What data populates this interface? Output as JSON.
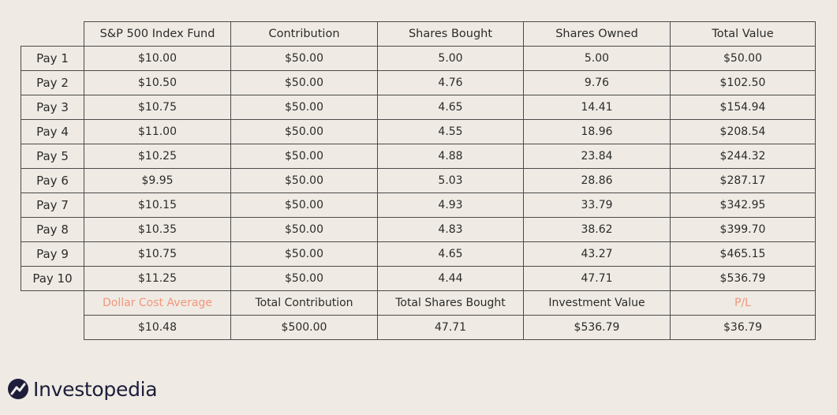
{
  "table": {
    "headers": {
      "fund": "S&P 500 Index Fund",
      "contribution": "Contribution",
      "shares_bought": "Shares Bought",
      "shares_owned": "Shares Owned",
      "total_value": "Total Value"
    },
    "rows": [
      {
        "label": "Pay 1",
        "price": "$10.00",
        "contribution": "$50.00",
        "shares_bought": "5.00",
        "shares_owned": "5.00",
        "total_value": "$50.00"
      },
      {
        "label": "Pay 2",
        "price": "$10.50",
        "contribution": "$50.00",
        "shares_bought": "4.76",
        "shares_owned": "9.76",
        "total_value": "$102.50"
      },
      {
        "label": "Pay 3",
        "price": "$10.75",
        "contribution": "$50.00",
        "shares_bought": "4.65",
        "shares_owned": "14.41",
        "total_value": "$154.94"
      },
      {
        "label": "Pay 4",
        "price": "$11.00",
        "contribution": "$50.00",
        "shares_bought": "4.55",
        "shares_owned": "18.96",
        "total_value": "$208.54"
      },
      {
        "label": "Pay 5",
        "price": "$10.25",
        "contribution": "$50.00",
        "shares_bought": "4.88",
        "shares_owned": "23.84",
        "total_value": "$244.32"
      },
      {
        "label": "Pay 6",
        "price": "$9.95",
        "contribution": "$50.00",
        "shares_bought": "5.03",
        "shares_owned": "28.86",
        "total_value": "$287.17"
      },
      {
        "label": "Pay 7",
        "price": "$10.15",
        "contribution": "$50.00",
        "shares_bought": "4.93",
        "shares_owned": "33.79",
        "total_value": "$342.95"
      },
      {
        "label": "Pay 8",
        "price": "$10.35",
        "contribution": "$50.00",
        "shares_bought": "4.83",
        "shares_owned": "38.62",
        "total_value": "$399.70"
      },
      {
        "label": "Pay 9",
        "price": "$10.75",
        "contribution": "$50.00",
        "shares_bought": "4.65",
        "shares_owned": "43.27",
        "total_value": "$465.15"
      },
      {
        "label": "Pay 10",
        "price": "$11.25",
        "contribution": "$50.00",
        "shares_bought": "4.44",
        "shares_owned": "47.71",
        "total_value": "$536.79"
      }
    ],
    "summary_labels": {
      "dollar_cost_average": "Dollar Cost Average",
      "total_contribution": "Total Contribution",
      "total_shares_bought": "Total Shares Bought",
      "investment_value": "Investment Value",
      "pl": "P/L"
    },
    "summary_values": {
      "dollar_cost_average": "$10.48",
      "total_contribution": "$500.00",
      "total_shares_bought": "47.71",
      "investment_value": "$536.79",
      "pl": "$36.79"
    }
  },
  "brand": {
    "name": "Investopedia",
    "icon": "investopedia-logo-mark-icon"
  },
  "colors": {
    "background": "#efebe4",
    "accent": "#f2957b",
    "border": "#4a4a4a",
    "brand": "#1d1d3b"
  }
}
